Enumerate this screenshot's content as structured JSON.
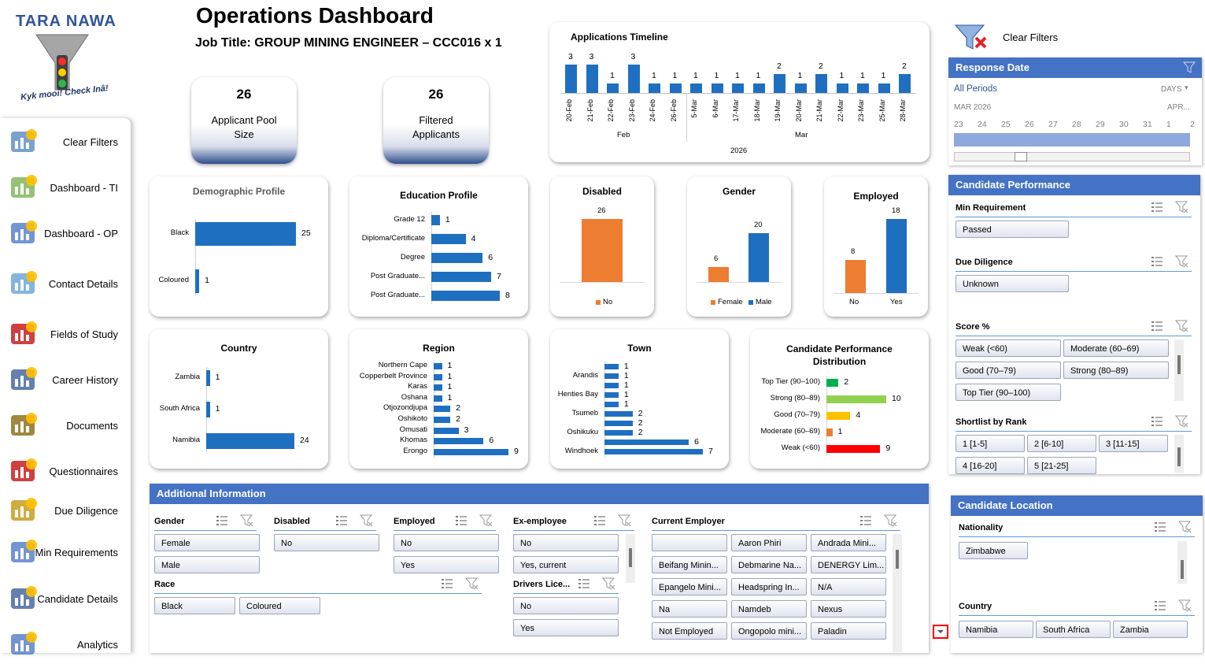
{
  "logo": {
    "name": "TARA NAWA",
    "tagline": "Kyk mooi! Check Inâ!"
  },
  "title": "Operations Dashboard",
  "subtitle": "Job Title: GROUP MINING ENGINEER – CCC016 x 1",
  "sidebar": {
    "items": [
      {
        "label": "Clear Filters",
        "icon": "funnel-clear-icon"
      },
      {
        "label": "Dashboard - TI",
        "icon": "kpi-dashboard-icon"
      },
      {
        "label": "Dashboard - OP",
        "icon": "dashboard-icon"
      },
      {
        "label": "Contact Details",
        "icon": "contact-card-icon"
      },
      {
        "label": "Fields of Study",
        "icon": "books-icon"
      },
      {
        "label": "Career History",
        "icon": "briefcase-icon"
      },
      {
        "label": "Documents",
        "icon": "documents-icon"
      },
      {
        "label": "Questionnaires",
        "icon": "question-search-icon"
      },
      {
        "label": "Due Diligence",
        "icon": "detective-icon"
      },
      {
        "label": "Min Requirements",
        "icon": "checklist-icon"
      },
      {
        "label": "Candidate Details",
        "icon": "id-badge-icon"
      },
      {
        "label": "Analytics",
        "icon": "analytics-icon"
      }
    ]
  },
  "kpis": [
    {
      "value": "26",
      "label": "Applicant Pool Size"
    },
    {
      "value": "26",
      "label": "Filtered Applicants"
    }
  ],
  "chart_data": [
    {
      "type": "bar",
      "title": "Applications Timeline",
      "categories": [
        "20-Feb",
        "21-Feb",
        "22-Feb",
        "23-Feb",
        "24-Feb",
        "26-Feb",
        "5-Mar",
        "6-Mar",
        "17-Mar",
        "18-Mar",
        "19-Mar",
        "20-Mar",
        "21-Mar",
        "22-Mar",
        "23-Mar",
        "25-Mar",
        "28-Mar"
      ],
      "values": [
        3,
        3,
        1,
        3,
        1,
        1,
        1,
        1,
        1,
        1,
        2,
        1,
        2,
        1,
        1,
        1,
        2
      ],
      "groups": [
        "Feb",
        "Mar"
      ],
      "year": "2026",
      "ylim": [
        0,
        3
      ]
    },
    {
      "type": "bar",
      "orientation": "horizontal",
      "title": "Demographic Profile",
      "categories": [
        "Black",
        "Coloured"
      ],
      "values": [
        25,
        1
      ],
      "xlim": [
        0,
        25
      ]
    },
    {
      "type": "bar",
      "orientation": "horizontal",
      "title": "Education Profile",
      "categories": [
        "Grade 12",
        "Diploma/Certificate",
        "Degree",
        "Post Graduate...",
        "Post Graduate..."
      ],
      "values": [
        1,
        4,
        6,
        7,
        8
      ],
      "xlim": [
        0,
        8
      ]
    },
    {
      "type": "bar",
      "title": "Disabled",
      "categories": [
        "No"
      ],
      "values": [
        26
      ],
      "legend": [
        "No"
      ],
      "ylim": [
        0,
        26
      ]
    },
    {
      "type": "bar",
      "title": "Gender",
      "categories": [
        "Female",
        "Male"
      ],
      "values": [
        6,
        20
      ],
      "legend": [
        "Female",
        "Male"
      ],
      "ylim": [
        0,
        20
      ]
    },
    {
      "type": "bar",
      "title": "Employed",
      "categories": [
        "No",
        "Yes"
      ],
      "values": [
        8,
        18
      ],
      "ylim": [
        0,
        18
      ]
    },
    {
      "type": "bar",
      "orientation": "horizontal",
      "title": "Country",
      "categories": [
        "Zambia",
        "South Africa",
        "Namibia"
      ],
      "values": [
        1,
        1,
        24
      ],
      "xlim": [
        0,
        24
      ]
    },
    {
      "type": "bar",
      "orientation": "horizontal",
      "title": "Region",
      "categories": [
        "Northern Cape",
        "Copperbelt Province",
        "Karas",
        "Oshana",
        "Otjozondjupa",
        "Oshikoto",
        "Omusati",
        "Khomas",
        "Erongo"
      ],
      "values": [
        1,
        1,
        1,
        1,
        2,
        2,
        3,
        6,
        9
      ],
      "xlim": [
        0,
        9
      ]
    },
    {
      "type": "bar",
      "orientation": "horizontal",
      "title": "Town",
      "categories": [
        "",
        "Arandis",
        "",
        "Henties Bay",
        "",
        "Tsumeb",
        "",
        "Oshikuku",
        "",
        "Windhoek"
      ],
      "values": [
        1,
        1,
        1,
        1,
        1,
        2,
        2,
        2,
        6,
        7
      ],
      "xlim": [
        0,
        7
      ]
    },
    {
      "type": "bar",
      "orientation": "horizontal",
      "title": "Candidate Performance Distribution",
      "categories": [
        "Top Tier (90–100)",
        "Strong (80–89)",
        "Good (70–79)",
        "Moderate (60–69)",
        "Weak (<60)"
      ],
      "values": [
        2,
        10,
        4,
        1,
        9
      ],
      "xlim": [
        0,
        10
      ]
    }
  ],
  "colors": {
    "accent": "#4472c4",
    "bar": "#1f6fc1",
    "orange": "#ed7d31",
    "green": "#00b050",
    "lightgreen": "#92d050",
    "yellow": "#ffc000",
    "red": "#ff0000"
  },
  "right": {
    "clear_filters": "Clear Filters",
    "response_date": {
      "title": "Response Date",
      "period": "All Periods",
      "unit": "DAYS",
      "month1": "MAR 2026",
      "month2": "APR...",
      "days": [
        "23",
        "24",
        "25",
        "26",
        "27",
        "28",
        "29",
        "30",
        "31",
        "1",
        "2"
      ]
    },
    "performance": {
      "title": "Candidate Performance",
      "min_req": {
        "label": "Min Requirement",
        "items": [
          "Passed"
        ]
      },
      "due_diligence": {
        "label": "Due Diligence",
        "items": [
          "Unknown"
        ]
      },
      "score": {
        "label": "Score %",
        "items": [
          "Weak (<60)",
          "Moderate (60–69)",
          "Good (70–79)",
          "Strong (80–89)",
          "Top Tier (90–100)"
        ]
      },
      "shortlist": {
        "label": "Shortlist by Rank",
        "items": [
          "1 [1-5]",
          "2 [6-10]",
          "3 [11-15]",
          "4 [16-20]",
          "5 [21-25]"
        ]
      }
    },
    "location": {
      "title": "Candidate Location",
      "nationality": {
        "label": "Nationality",
        "items": [
          "Zimbabwe"
        ]
      },
      "country": {
        "label": "Country",
        "items": [
          "Namibia",
          "South Africa",
          "Zambia"
        ]
      }
    }
  },
  "additional": {
    "title": "Additional Information",
    "gender": {
      "label": "Gender",
      "items": [
        "Female",
        "Male"
      ]
    },
    "disabled": {
      "label": "Disabled",
      "items": [
        "No"
      ]
    },
    "employed": {
      "label": "Employed",
      "items": [
        "No",
        "Yes"
      ]
    },
    "ex_employee": {
      "label": "Ex-employee",
      "items": [
        "No",
        "Yes, current"
      ]
    },
    "race": {
      "label": "Race",
      "items": [
        "Black",
        "Coloured"
      ]
    },
    "drivers": {
      "label": "Drivers Lice...",
      "items": [
        "No",
        "Yes"
      ]
    },
    "employer": {
      "label": "Current Employer",
      "items": [
        "",
        "Aaron Phiri",
        "Andrada Mini...",
        "Beifang Minin...",
        "Debmarine Na...",
        "DENERGY Lim...",
        "Epangelo Mini...",
        "Headspring In...",
        "N/A",
        "Na",
        "Namdeb",
        "Nexus",
        "Not Employed",
        "Ongopolo mini...",
        "Paladin"
      ]
    }
  }
}
